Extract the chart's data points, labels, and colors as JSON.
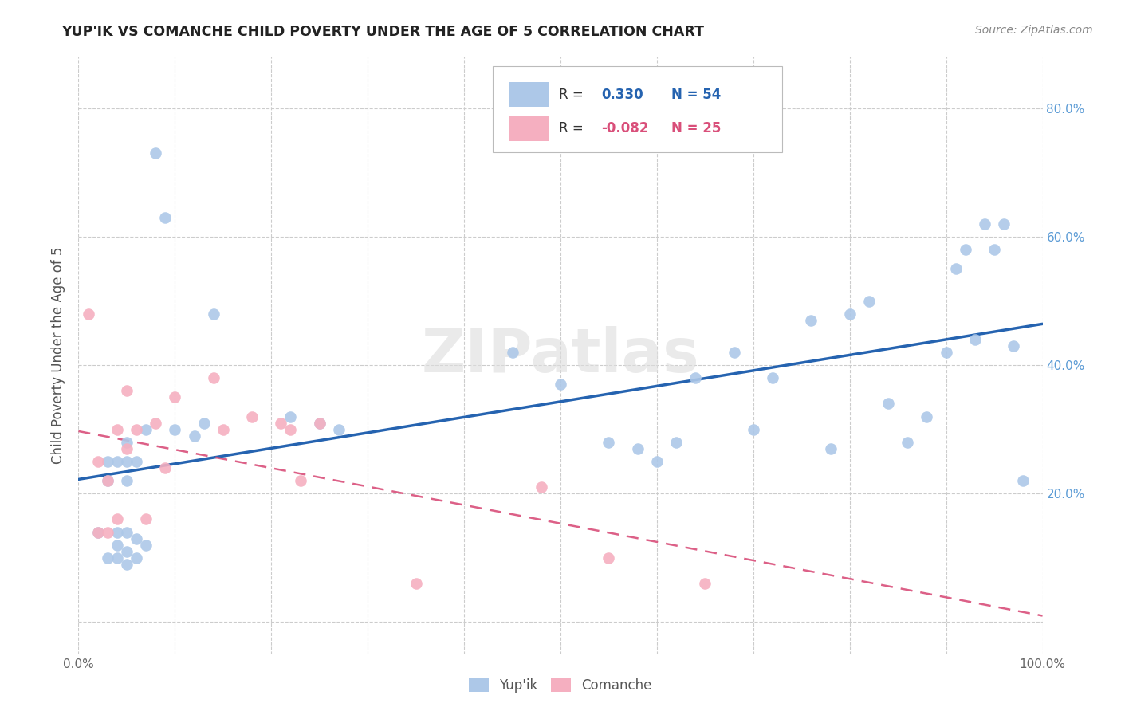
{
  "title": "YUP'IK VS COMANCHE CHILD POVERTY UNDER THE AGE OF 5 CORRELATION CHART",
  "source": "Source: ZipAtlas.com",
  "ylabel": "Child Poverty Under the Age of 5",
  "xlim": [
    0.0,
    1.0
  ],
  "ylim": [
    -0.05,
    0.88
  ],
  "xtick_positions": [
    0.0,
    0.1,
    0.2,
    0.3,
    0.4,
    0.5,
    0.6,
    0.7,
    0.8,
    0.9,
    1.0
  ],
  "xticklabels": [
    "0.0%",
    "",
    "",
    "",
    "",
    "",
    "",
    "",
    "",
    "",
    "100.0%"
  ],
  "ytick_positions": [
    0.0,
    0.2,
    0.4,
    0.6,
    0.8
  ],
  "ytick_labels": [
    "",
    "20.0%",
    "40.0%",
    "60.0%",
    "80.0%"
  ],
  "color_yupik": "#adc8e8",
  "color_comanche": "#f5afc0",
  "color_line_yupik": "#2563b0",
  "color_line_comanche": "#d94f7a",
  "watermark": "ZIPatlas",
  "yupik_x": [
    0.02,
    0.03,
    0.03,
    0.03,
    0.04,
    0.04,
    0.04,
    0.04,
    0.05,
    0.05,
    0.05,
    0.05,
    0.05,
    0.05,
    0.06,
    0.06,
    0.06,
    0.07,
    0.07,
    0.08,
    0.09,
    0.1,
    0.12,
    0.13,
    0.14,
    0.22,
    0.25,
    0.27,
    0.45,
    0.5,
    0.55,
    0.58,
    0.6,
    0.62,
    0.64,
    0.68,
    0.7,
    0.72,
    0.76,
    0.78,
    0.8,
    0.82,
    0.84,
    0.86,
    0.88,
    0.9,
    0.91,
    0.92,
    0.93,
    0.94,
    0.95,
    0.96,
    0.97,
    0.98
  ],
  "yupik_y": [
    0.14,
    0.22,
    0.25,
    0.1,
    0.1,
    0.12,
    0.14,
    0.25,
    0.09,
    0.11,
    0.14,
    0.22,
    0.25,
    0.28,
    0.1,
    0.13,
    0.25,
    0.12,
    0.3,
    0.73,
    0.63,
    0.3,
    0.29,
    0.31,
    0.48,
    0.32,
    0.31,
    0.3,
    0.42,
    0.37,
    0.28,
    0.27,
    0.25,
    0.28,
    0.38,
    0.42,
    0.3,
    0.38,
    0.47,
    0.27,
    0.48,
    0.5,
    0.34,
    0.28,
    0.32,
    0.42,
    0.55,
    0.58,
    0.44,
    0.62,
    0.58,
    0.62,
    0.43,
    0.22
  ],
  "comanche_x": [
    0.01,
    0.02,
    0.02,
    0.03,
    0.03,
    0.04,
    0.04,
    0.05,
    0.05,
    0.06,
    0.07,
    0.08,
    0.09,
    0.1,
    0.14,
    0.15,
    0.18,
    0.21,
    0.22,
    0.23,
    0.25,
    0.35,
    0.48,
    0.55,
    0.65
  ],
  "comanche_y": [
    0.48,
    0.14,
    0.25,
    0.14,
    0.22,
    0.16,
    0.3,
    0.36,
    0.27,
    0.3,
    0.16,
    0.31,
    0.24,
    0.35,
    0.38,
    0.3,
    0.32,
    0.31,
    0.3,
    0.22,
    0.31,
    0.06,
    0.21,
    0.1,
    0.06
  ]
}
